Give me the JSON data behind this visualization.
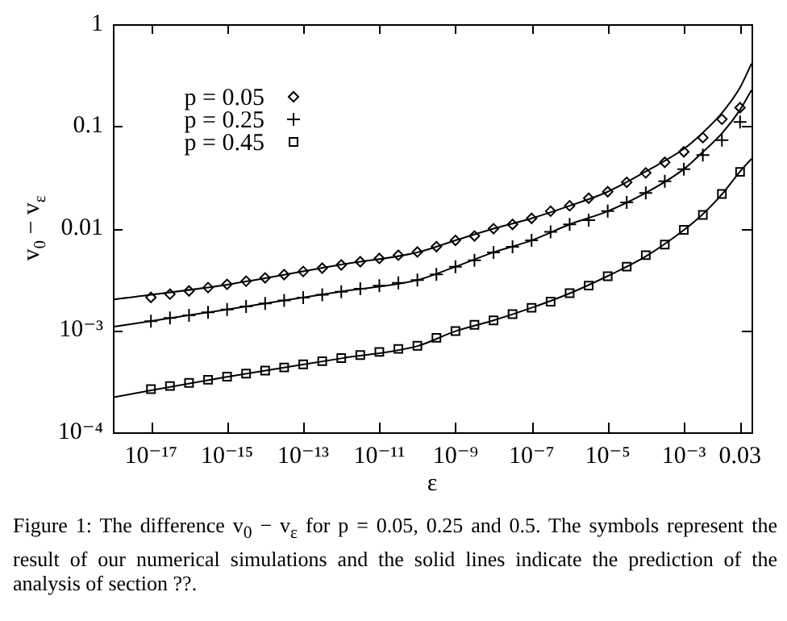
{
  "chart_data": {
    "type": "scatter",
    "xlabel": "ε",
    "ylabel": "v$_{0}$ − v$_{ε}$",
    "log": "xy",
    "legend": "top left",
    "xlim": [
      1e-18,
      0.06
    ],
    "ylim": [
      0.0001,
      1
    ],
    "xticks": [
      {
        "value": 1e-17,
        "label": "10⁻¹⁷"
      },
      {
        "value": 1e-15,
        "label": "10⁻¹⁵"
      },
      {
        "value": 1e-13,
        "label": "10⁻¹³"
      },
      {
        "value": 1e-11,
        "label": "10⁻¹¹"
      },
      {
        "value": 1e-09,
        "label": "10⁻⁹"
      },
      {
        "value": 1e-07,
        "label": "10⁻⁷"
      },
      {
        "value": 1e-05,
        "label": "10⁻⁵"
      },
      {
        "value": 0.001,
        "label": "10⁻³"
      },
      0.03
    ],
    "yticks": [
      {
        "value": 0.0001,
        "label": "10⁻⁴"
      },
      {
        "value": 0.001,
        "label": "10⁻³"
      },
      0.01,
      0.1,
      1
    ],
    "x": [
      1e-17,
      3.16e-17,
      1e-16,
      3.16e-16,
      1e-15,
      3.16e-15,
      1e-14,
      3.16e-14,
      1e-13,
      3.16e-13,
      1e-12,
      3.16e-12,
      1e-11,
      3.16e-11,
      1e-10,
      3.16e-10,
      1e-09,
      3.16e-09,
      1e-08,
      3.16e-08,
      1e-07,
      3.16e-07,
      1e-06,
      3.16e-06,
      1e-05,
      3.16e-05,
      0.0001,
      0.000316,
      0.001,
      0.00316,
      0.01,
      0.03
    ],
    "series": [
      {
        "name": "p = 0.05",
        "color": "#000000",
        "marker": "diamond",
        "values": [
          0.0021,
          0.00226,
          0.00243,
          0.00262,
          0.00282,
          0.00303,
          0.00326,
          0.00351,
          0.00377,
          0.00406,
          0.00437,
          0.0047,
          0.00506,
          0.00544,
          0.00585,
          0.0066,
          0.0076,
          0.0084,
          0.0099,
          0.0109,
          0.0125,
          0.0147,
          0.0166,
          0.0197,
          0.0228,
          0.0282,
          0.0349,
          0.0443,
          0.0561,
          0.0773,
          0.117,
          0.152
        ]
      },
      {
        "name": "p = 0.25",
        "color": "#000000",
        "marker": "cross",
        "values": [
          0.00123,
          0.00132,
          0.0014,
          0.0015,
          0.0016,
          0.00171,
          0.00183,
          0.00196,
          0.00209,
          0.00223,
          0.00239,
          0.00255,
          0.00273,
          0.00291,
          0.00311,
          0.00352,
          0.0042,
          0.00484,
          0.00579,
          0.00659,
          0.0076,
          0.0092,
          0.0109,
          0.012,
          0.0147,
          0.0179,
          0.0222,
          0.0289,
          0.0379,
          0.0522,
          0.0731,
          0.11
        ]
      },
      {
        "name": "p = 0.45",
        "color": "#000000",
        "marker": "square",
        "values": [
          0.000265,
          0.000284,
          0.000305,
          0.000327,
          0.000351,
          0.000376,
          0.000403,
          0.000432,
          0.000463,
          0.000497,
          0.000533,
          0.000571,
          0.000613,
          0.000657,
          0.000705,
          0.000843,
          0.000982,
          0.00113,
          0.00125,
          0.00144,
          0.00166,
          0.00191,
          0.00231,
          0.00274,
          0.00339,
          0.0042,
          0.00545,
          0.00692,
          0.00964,
          0.0135,
          0.0217,
          0.0357
        ]
      },
      {
        "type": "line",
        "color": "#000000",
        "marker": "none",
        "x": [
          1e-18,
          1e-15,
          1e-12,
          1e-10,
          1e-09,
          1e-08,
          1e-07,
          1e-06,
          1e-05,
          0.0001,
          0.001,
          0.003,
          0.01,
          0.03,
          0.06
        ],
        "values": [
          0.002,
          0.0028,
          0.0044,
          0.0058,
          0.0076,
          0.0099,
          0.0125,
          0.0166,
          0.0228,
          0.036,
          0.06,
          0.085,
          0.135,
          0.24,
          0.41
        ]
      },
      {
        "type": "line",
        "color": "#000000",
        "marker": "none",
        "x": [
          1e-18,
          1e-15,
          1e-12,
          1e-10,
          1e-09,
          1e-08,
          1e-07,
          1e-06,
          1e-05,
          0.0001,
          0.001,
          0.003,
          0.01,
          0.03,
          0.06
        ],
        "values": [
          0.00108,
          0.0016,
          0.0024,
          0.0031,
          0.0042,
          0.0058,
          0.0076,
          0.0109,
          0.0147,
          0.0222,
          0.038,
          0.055,
          0.085,
          0.145,
          0.226
        ]
      },
      {
        "type": "line",
        "color": "#000000",
        "marker": "none",
        "x": [
          1e-18,
          1e-15,
          1e-12,
          1e-10,
          1e-09,
          1e-08,
          1e-07,
          1e-06,
          1e-05,
          0.0001,
          0.001,
          0.003,
          0.01,
          0.03,
          0.06
        ],
        "values": [
          0.00022,
          0.00035,
          0.00053,
          0.0007,
          0.00098,
          0.00125,
          0.00166,
          0.0023,
          0.0034,
          0.0053,
          0.0096,
          0.0135,
          0.0215,
          0.036,
          0.048
        ]
      }
    ],
    "annotations": [
      "Figure 1: The difference v$_{0}$ − v$_{ε}$ for p = 0.05, 0.25 and 0.5. The symbols represent the result of our numerical simulations and the solid lines indicate the prediction of the analysis of section ??."
    ]
  }
}
